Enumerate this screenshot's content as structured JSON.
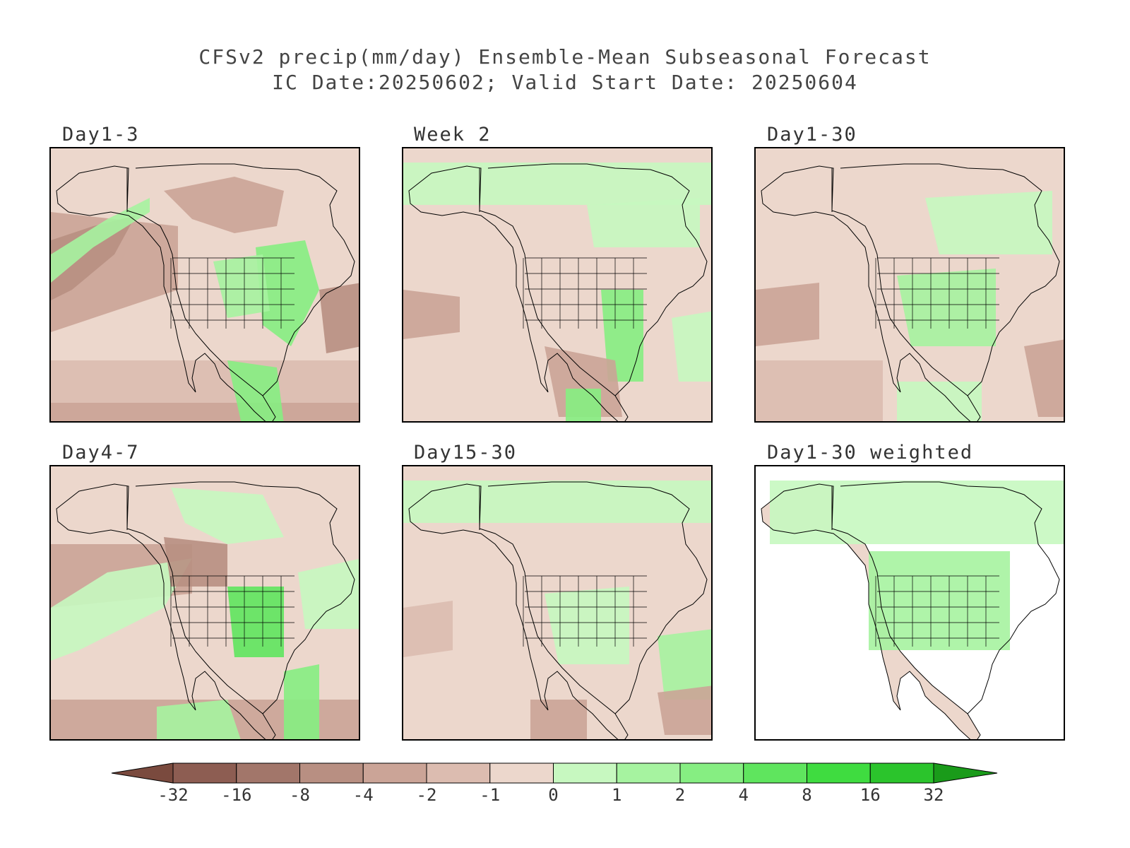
{
  "title_line1": "CFSv2 precip(mm/day) Ensemble-Mean Subseasonal Forecast",
  "title_line2": "IC Date:20250602; Valid Start Date: 20250604",
  "panels": [
    {
      "label": "Day1-3",
      "variant": "d13"
    },
    {
      "label": "Week 2",
      "variant": "w2"
    },
    {
      "label": "Day1-30",
      "variant": "d130"
    },
    {
      "label": "Day4-7",
      "variant": "d47"
    },
    {
      "label": "Day15-30",
      "variant": "d1530"
    },
    {
      "label": "Day1-30 weighted",
      "variant": "weighted"
    }
  ],
  "colorbar": {
    "tick_labels": [
      "-32",
      "-16",
      "-8",
      "-4",
      "-2",
      "-1",
      "0",
      "1",
      "2",
      "4",
      "8",
      "16",
      "32"
    ],
    "colors": [
      "#7a4a3e",
      "#8d5d52",
      "#a2766a",
      "#b88f82",
      "#cba497",
      "#dcbcb0",
      "#ecd7cc",
      "#c7f8c0",
      "#a6f3a0",
      "#86ee82",
      "#5fe55e",
      "#3fdc40",
      "#2bc42c",
      "#1a9b1a"
    ]
  }
}
